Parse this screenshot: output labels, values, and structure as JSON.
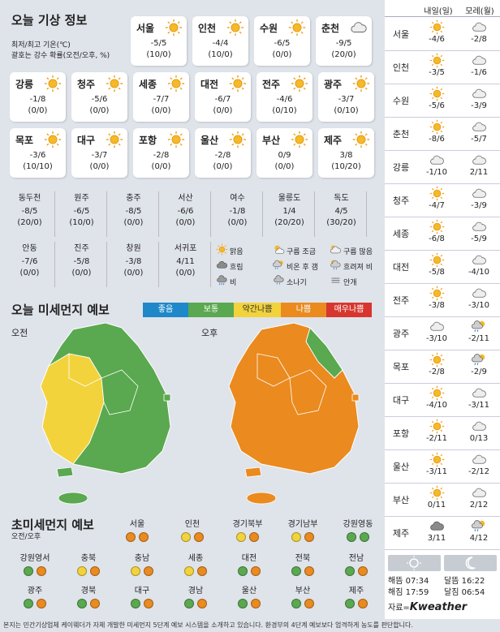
{
  "title": "오늘 기상 정보",
  "subtitle_line1": "최저/최고 기온(℃)",
  "subtitle_line2": "괄호는 강수 확률(오전/오후, %)",
  "cities": [
    {
      "name": "서울",
      "icon": "sun-icon",
      "temp": "-5/5",
      "precip": "(10/0)"
    },
    {
      "name": "인천",
      "icon": "sun-icon",
      "temp": "-4/4",
      "precip": "(10/0)"
    },
    {
      "name": "수원",
      "icon": "sun-icon",
      "temp": "-6/5",
      "precip": "(0/0)"
    },
    {
      "name": "춘천",
      "icon": "cloud-icon",
      "temp": "-9/5",
      "precip": "(20/0)"
    },
    {
      "name": "강릉",
      "icon": "sun-icon",
      "temp": "-1/8",
      "precip": "(0/0)"
    },
    {
      "name": "청주",
      "icon": "sun-icon",
      "temp": "-5/6",
      "precip": "(0/0)"
    },
    {
      "name": "세종",
      "icon": "sun-icon",
      "temp": "-7/7",
      "precip": "(0/0)"
    },
    {
      "name": "대전",
      "icon": "sun-icon",
      "temp": "-6/7",
      "precip": "(0/0)"
    },
    {
      "name": "전주",
      "icon": "sun-icon",
      "temp": "-4/6",
      "precip": "(0/10)"
    },
    {
      "name": "광주",
      "icon": "sun-icon",
      "temp": "-3/7",
      "precip": "(0/10)"
    },
    {
      "name": "목포",
      "icon": "sun-icon",
      "temp": "-3/6",
      "precip": "(10/10)"
    },
    {
      "name": "대구",
      "icon": "sun-icon",
      "temp": "-3/7",
      "precip": "(0/0)"
    },
    {
      "name": "포항",
      "icon": "sun-icon",
      "temp": "-2/8",
      "precip": "(0/0)"
    },
    {
      "name": "울산",
      "icon": "sun-icon",
      "temp": "-2/8",
      "precip": "(0/0)"
    },
    {
      "name": "부산",
      "icon": "sun-icon",
      "temp": "0/9",
      "precip": "(0/0)"
    },
    {
      "name": "제주",
      "icon": "sun-icon",
      "temp": "3/8",
      "precip": "(10/20)"
    }
  ],
  "small_cities_row1": [
    {
      "name": "동두천",
      "temp": "-8/5",
      "precip": "(20/0)"
    },
    {
      "name": "원주",
      "temp": "-6/5",
      "precip": "(10/0)"
    },
    {
      "name": "충주",
      "temp": "-8/5",
      "precip": "(0/0)"
    },
    {
      "name": "서산",
      "temp": "-6/6",
      "precip": "(0/0)"
    },
    {
      "name": "여수",
      "temp": "-1/8",
      "precip": "(0/0)"
    },
    {
      "name": "울릉도",
      "temp": "1/4",
      "precip": "(20/20)"
    },
    {
      "name": "독도",
      "temp": "4/5",
      "precip": "(30/20)"
    }
  ],
  "small_cities_row2": [
    {
      "name": "안동",
      "temp": "-7/6",
      "precip": "(0/0)"
    },
    {
      "name": "진주",
      "temp": "-5/8",
      "precip": "(0/0)"
    },
    {
      "name": "창원",
      "temp": "-3/8",
      "precip": "(0/0)"
    },
    {
      "name": "서귀포",
      "temp": "4/11",
      "precip": "(0/0)"
    }
  ],
  "weather_legend": [
    {
      "icon": "sun-icon",
      "label": "맑음"
    },
    {
      "icon": "partly-cloudy-icon",
      "label": "구름 조금"
    },
    {
      "icon": "mostly-cloudy-icon",
      "label": "구름 많음"
    },
    {
      "icon": "overcast-icon",
      "label": "흐림"
    },
    {
      "icon": "rain-then-clear-icon",
      "label": "비온 후 갬"
    },
    {
      "icon": "cloudy-rain-icon",
      "label": "흐려져 비"
    },
    {
      "icon": "rain-icon",
      "label": "비"
    },
    {
      "icon": "shower-icon",
      "label": "소나기"
    },
    {
      "icon": "fog-icon",
      "label": "안개"
    }
  ],
  "dust": {
    "title": "오늘 미세먼지 예보",
    "scale": [
      {
        "label": "좋음",
        "color": "#1e88c9"
      },
      {
        "label": "보통",
        "color": "#5aa84f"
      },
      {
        "label": "약간나쁨",
        "color": "#f2d33c"
      },
      {
        "label": "나쁨",
        "color": "#ea8a1f"
      },
      {
        "label": "매우나쁨",
        "color": "#d6362e"
      }
    ],
    "morning_label": "오전",
    "afternoon_label": "오후"
  },
  "ultrafine": {
    "title": "초미세먼지 예보",
    "sub": "오전/오후",
    "regions": [
      {
        "name": "서울",
        "am": "#ea8a1f",
        "pm": "#ea8a1f"
      },
      {
        "name": "인천",
        "am": "#f2d33c",
        "pm": "#ea8a1f"
      },
      {
        "name": "경기북부",
        "am": "#f2d33c",
        "pm": "#ea8a1f"
      },
      {
        "name": "경기남부",
        "am": "#f2d33c",
        "pm": "#ea8a1f"
      },
      {
        "name": "강원영동",
        "am": "#5aa84f",
        "pm": "#5aa84f"
      },
      {
        "name": "강원영서",
        "am": "#5aa84f",
        "pm": "#ea8a1f"
      },
      {
        "name": "충북",
        "am": "#f2d33c",
        "pm": "#ea8a1f"
      },
      {
        "name": "충남",
        "am": "#f2d33c",
        "pm": "#ea8a1f"
      },
      {
        "name": "세종",
        "am": "#f2d33c",
        "pm": "#ea8a1f"
      },
      {
        "name": "대전",
        "am": "#5aa84f",
        "pm": "#ea8a1f"
      },
      {
        "name": "전북",
        "am": "#5aa84f",
        "pm": "#ea8a1f"
      },
      {
        "name": "전남",
        "am": "#5aa84f",
        "pm": "#ea8a1f"
      },
      {
        "name": "광주",
        "am": "#5aa84f",
        "pm": "#ea8a1f"
      },
      {
        "name": "경북",
        "am": "#5aa84f",
        "pm": "#ea8a1f"
      },
      {
        "name": "대구",
        "am": "#5aa84f",
        "pm": "#ea8a1f"
      },
      {
        "name": "경남",
        "am": "#5aa84f",
        "pm": "#ea8a1f"
      },
      {
        "name": "울산",
        "am": "#5aa84f",
        "pm": "#ea8a1f"
      },
      {
        "name": "부산",
        "am": "#5aa84f",
        "pm": "#ea8a1f"
      },
      {
        "name": "제주",
        "am": "#5aa84f",
        "pm": "#ea8a1f"
      }
    ]
  },
  "forecast": {
    "col1": "내일(일)",
    "col2": "모레(월)",
    "rows": [
      {
        "name": "서울",
        "d1_icon": "sun-icon",
        "d1": "-4/6",
        "d2_icon": "cloud-icon",
        "d2": "-2/8"
      },
      {
        "name": "인천",
        "d1_icon": "sun-icon",
        "d1": "-3/5",
        "d2_icon": "cloud-icon",
        "d2": "-1/6"
      },
      {
        "name": "수원",
        "d1_icon": "sun-icon",
        "d1": "-5/6",
        "d2_icon": "cloud-icon",
        "d2": "-3/9"
      },
      {
        "name": "춘천",
        "d1_icon": "sun-icon",
        "d1": "-8/6",
        "d2_icon": "cloud-icon",
        "d2": "-5/7"
      },
      {
        "name": "강릉",
        "d1_icon": "cloud-icon",
        "d1": "-1/10",
        "d2_icon": "cloud-icon",
        "d2": "2/11"
      },
      {
        "name": "청주",
        "d1_icon": "sun-icon",
        "d1": "-4/7",
        "d2_icon": "cloud-icon",
        "d2": "-3/9"
      },
      {
        "name": "세종",
        "d1_icon": "sun-icon",
        "d1": "-6/8",
        "d2_icon": "cloud-icon",
        "d2": "-5/9"
      },
      {
        "name": "대전",
        "d1_icon": "sun-icon",
        "d1": "-5/8",
        "d2_icon": "cloud-icon",
        "d2": "-4/10"
      },
      {
        "name": "전주",
        "d1_icon": "sun-icon",
        "d1": "-3/8",
        "d2_icon": "cloud-icon",
        "d2": "-3/10"
      },
      {
        "name": "광주",
        "d1_icon": "cloud-icon",
        "d1": "-3/10",
        "d2_icon": "rain-then-clear-icon",
        "d2": "-2/11"
      },
      {
        "name": "목포",
        "d1_icon": "sun-icon",
        "d1": "-2/8",
        "d2_icon": "rain-then-clear-icon",
        "d2": "-2/9"
      },
      {
        "name": "대구",
        "d1_icon": "sun-icon",
        "d1": "-4/10",
        "d2_icon": "cloud-icon",
        "d2": "-3/11"
      },
      {
        "name": "포항",
        "d1_icon": "sun-icon",
        "d1": "-2/11",
        "d2_icon": "cloud-icon",
        "d2": "0/13"
      },
      {
        "name": "울산",
        "d1_icon": "sun-icon",
        "d1": "-3/11",
        "d2_icon": "cloud-icon",
        "d2": "-2/12"
      },
      {
        "name": "부산",
        "d1_icon": "sun-icon",
        "d1": "0/11",
        "d2_icon": "cloud-icon",
        "d2": "2/12"
      },
      {
        "name": "제주",
        "d1_icon": "overcast-icon",
        "d1": "3/11",
        "d2_icon": "rain-then-clear-icon",
        "d2": "4/12"
      }
    ]
  },
  "sun": {
    "sunrise": "해뜸 07:34",
    "sunset": "해짐 17:59",
    "moonrise": "달뜸 16:22",
    "moonset": "달짐 06:54"
  },
  "source_label": "자료=",
  "brand": "Kweather",
  "footer": "본지는 민간기상업체 케이웨더가 자체 개발한 미세먼지 5단계 예보 시스템을 소개하고 있습니다. 환경부의 4단계 예보보다 엄격하게 농도를 판단합니다."
}
